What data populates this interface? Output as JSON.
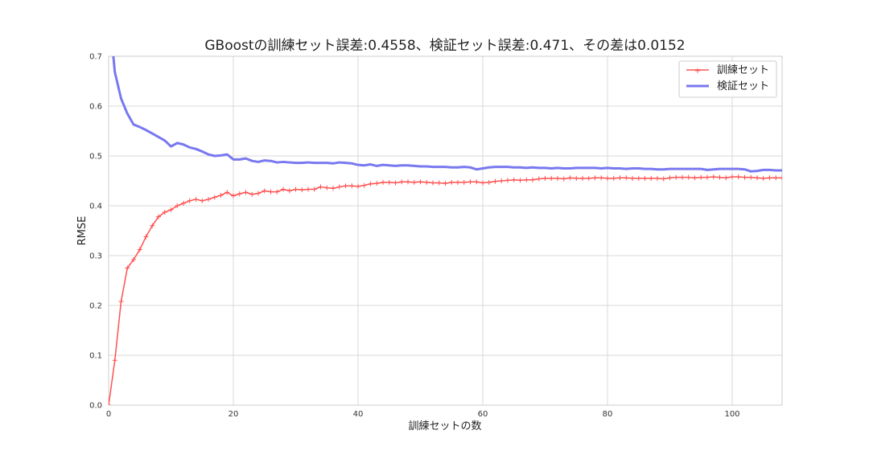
{
  "chart_data": {
    "type": "line",
    "title": "GBoostの訓練セット誤差:0.4558、検証セット誤差:0.471、その差は0.0152",
    "xlabel": "訓練セットの数",
    "ylabel": "RMSE",
    "xlim": [
      0,
      108
    ],
    "ylim": [
      0.0,
      0.7
    ],
    "xticks": [
      0,
      20,
      40,
      60,
      80,
      100
    ],
    "yticks": [
      0.0,
      0.1,
      0.2,
      0.3,
      0.4,
      0.5,
      0.6,
      0.7
    ],
    "xtick_labels": [
      "0",
      "20",
      "40",
      "60",
      "80",
      "100"
    ],
    "ytick_labels": [
      "0.0",
      "0.1",
      "0.2",
      "0.3",
      "0.4",
      "0.5",
      "0.6",
      "0.7"
    ],
    "grid": true,
    "legend_position": "top-right",
    "series": [
      {
        "name": "訓練セット",
        "color": "#ff5050",
        "marker": "+",
        "values": [
          0.0,
          0.09,
          0.208,
          0.275,
          0.292,
          0.312,
          0.338,
          0.36,
          0.378,
          0.387,
          0.392,
          0.4,
          0.405,
          0.41,
          0.413,
          0.41,
          0.413,
          0.417,
          0.421,
          0.427,
          0.42,
          0.424,
          0.427,
          0.423,
          0.425,
          0.43,
          0.428,
          0.428,
          0.433,
          0.43,
          0.433,
          0.432,
          0.433,
          0.433,
          0.438,
          0.436,
          0.435,
          0.438,
          0.44,
          0.44,
          0.439,
          0.441,
          0.444,
          0.445,
          0.447,
          0.447,
          0.446,
          0.448,
          0.448,
          0.447,
          0.448,
          0.447,
          0.446,
          0.446,
          0.445,
          0.447,
          0.447,
          0.447,
          0.448,
          0.448,
          0.446,
          0.447,
          0.449,
          0.45,
          0.451,
          0.452,
          0.451,
          0.452,
          0.452,
          0.454,
          0.455,
          0.455,
          0.455,
          0.454,
          0.456,
          0.455,
          0.455,
          0.455,
          0.456,
          0.456,
          0.455,
          0.455,
          0.456,
          0.456,
          0.455,
          0.455,
          0.455,
          0.455,
          0.455,
          0.454,
          0.456,
          0.457,
          0.457,
          0.457,
          0.456,
          0.457,
          0.457,
          0.458,
          0.457,
          0.456,
          0.458,
          0.458,
          0.457,
          0.457,
          0.456,
          0.455,
          0.456,
          0.456,
          0.4558
        ]
      },
      {
        "name": "検証セット",
        "color": "#7878f0",
        "marker": "",
        "values": [
          0.8,
          0.668,
          0.615,
          0.585,
          0.563,
          0.558,
          0.552,
          0.545,
          0.538,
          0.531,
          0.519,
          0.526,
          0.523,
          0.517,
          0.514,
          0.509,
          0.503,
          0.5,
          0.501,
          0.503,
          0.493,
          0.493,
          0.495,
          0.49,
          0.488,
          0.491,
          0.49,
          0.487,
          0.488,
          0.487,
          0.486,
          0.486,
          0.487,
          0.486,
          0.486,
          0.486,
          0.485,
          0.487,
          0.486,
          0.485,
          0.482,
          0.481,
          0.483,
          0.48,
          0.482,
          0.481,
          0.48,
          0.481,
          0.481,
          0.48,
          0.479,
          0.479,
          0.478,
          0.478,
          0.478,
          0.477,
          0.477,
          0.478,
          0.477,
          0.473,
          0.475,
          0.477,
          0.478,
          0.478,
          0.478,
          0.477,
          0.477,
          0.476,
          0.477,
          0.476,
          0.476,
          0.475,
          0.476,
          0.475,
          0.475,
          0.476,
          0.476,
          0.476,
          0.476,
          0.475,
          0.476,
          0.475,
          0.475,
          0.474,
          0.475,
          0.475,
          0.474,
          0.474,
          0.473,
          0.473,
          0.474,
          0.474,
          0.474,
          0.474,
          0.474,
          0.474,
          0.472,
          0.473,
          0.474,
          0.474,
          0.474,
          0.474,
          0.473,
          0.469,
          0.47,
          0.472,
          0.472,
          0.471,
          0.471
        ]
      }
    ]
  }
}
